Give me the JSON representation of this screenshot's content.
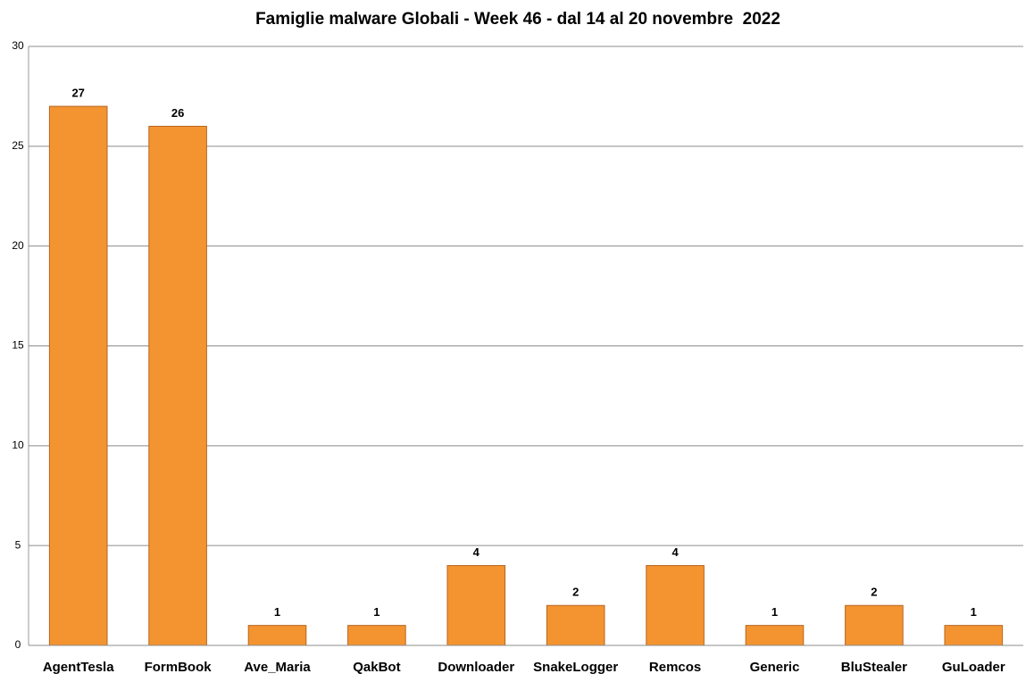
{
  "chart_data": {
    "type": "bar",
    "title": "Famiglie malware Globali - Week 46 - dal 14 al 20 novembre  2022",
    "categories": [
      "AgentTesla",
      "FormBook",
      "Ave_Maria",
      "QakBot",
      "Downloader",
      "SnakeLogger",
      "Remcos",
      "Generic",
      "BluStealer",
      "GuLoader"
    ],
    "values": [
      27,
      26,
      1,
      1,
      4,
      2,
      4,
      1,
      2,
      1
    ],
    "color": "#f39431",
    "ylim": [
      0,
      30
    ],
    "yticks": [
      0,
      5,
      10,
      15,
      20,
      25,
      30
    ],
    "grid": true
  }
}
